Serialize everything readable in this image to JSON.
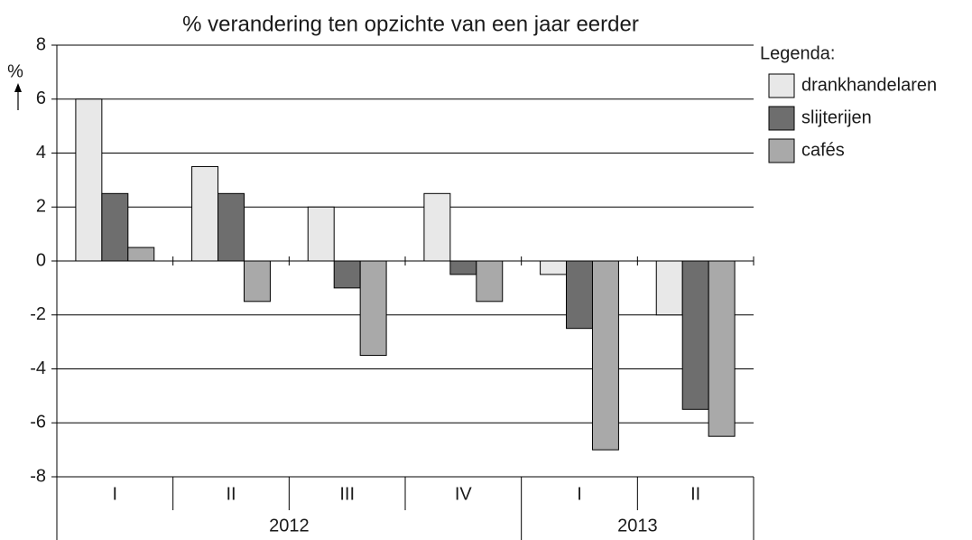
{
  "chart_data": {
    "type": "bar",
    "title": "% verandering ten opzichte van een jaar eerder",
    "y_label": "%",
    "legend_title": "Legenda:",
    "groups": [
      {
        "label": "2012",
        "categories": [
          "I",
          "II",
          "III",
          "IV"
        ]
      },
      {
        "label": "2013",
        "categories": [
          "I",
          "II"
        ]
      }
    ],
    "series": [
      {
        "name": "drankhandelaren",
        "color": "#e8e8e8",
        "values": [
          6,
          3.5,
          2,
          2.5,
          -0.5,
          -2
        ]
      },
      {
        "name": "slijterijen",
        "color": "#6e6e6e",
        "values": [
          2.5,
          2.5,
          -1,
          -0.5,
          -2.5,
          -5.5
        ]
      },
      {
        "name": "cafés",
        "color": "#a9a9a9",
        "values": [
          0.5,
          -1.5,
          -3.5,
          -1.5,
          -7,
          -6.5
        ]
      }
    ],
    "ylim": [
      -8,
      8
    ],
    "yticks": [
      -8,
      -6,
      -4,
      -2,
      0,
      2,
      4,
      6,
      8
    ],
    "grid": true,
    "legend": "right"
  }
}
